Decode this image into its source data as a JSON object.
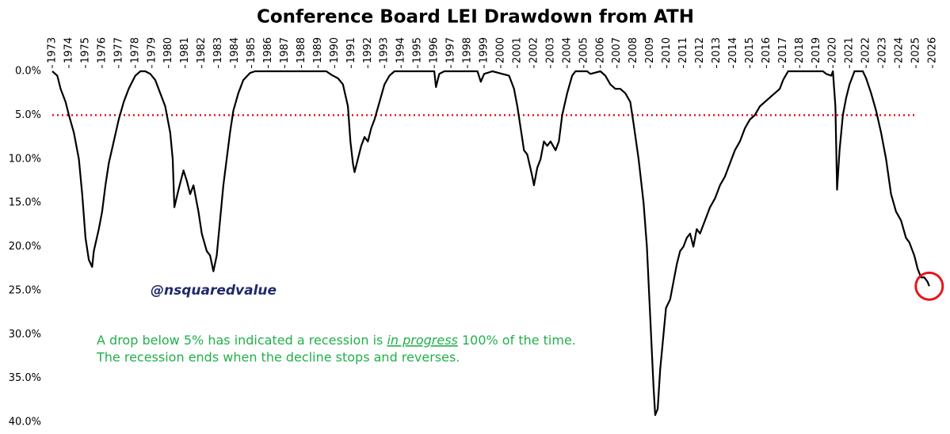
{
  "chart_data": {
    "type": "line",
    "title": "Conference Board LEI Drawdown from ATH",
    "color": "#000000",
    "x": [
      1973.0,
      1973.3,
      1973.5,
      1973.8,
      1974.0,
      1974.3,
      1974.6,
      1974.8,
      1975.0,
      1975.2,
      1975.4,
      1975.5,
      1975.8,
      1976.0,
      1976.2,
      1976.4,
      1976.7,
      1977.0,
      1977.3,
      1977.6,
      1978.0,
      1978.3,
      1978.6,
      1978.9,
      1979.2,
      1979.5,
      1979.8,
      1980.1,
      1980.25,
      1980.35,
      1980.6,
      1980.9,
      1981.1,
      1981.3,
      1981.5,
      1981.8,
      1982.0,
      1982.3,
      1982.5,
      1982.7,
      1982.9,
      1983.1,
      1983.3,
      1983.5,
      1983.7,
      1983.9,
      1984.2,
      1984.5,
      1984.9,
      1985.2,
      1989.5,
      1989.8,
      1990.2,
      1990.5,
      1990.8,
      1990.95,
      1991.1,
      1991.2,
      1991.4,
      1991.6,
      1991.8,
      1992.0,
      1992.2,
      1992.4,
      1992.7,
      1993.0,
      1993.3,
      1993.6,
      1996.0,
      1996.1,
      1996.3,
      1996.6,
      1998.6,
      1998.8,
      1999.0,
      1999.5,
      2000.5,
      2000.8,
      2001.0,
      2001.2,
      2001.4,
      2001.6,
      2001.9,
      2002.0,
      2002.2,
      2002.4,
      2002.6,
      2002.8,
      2003.0,
      2003.3,
      2003.5,
      2003.7,
      2004.0,
      2004.3,
      2004.5,
      2005.2,
      2005.4,
      2006.0,
      2006.3,
      2006.6,
      2006.9,
      2007.2,
      2007.5,
      2007.8,
      2008.0,
      2008.3,
      2008.6,
      2008.8,
      2008.95,
      2009.1,
      2009.2,
      2009.3,
      2009.45,
      2009.6,
      2009.8,
      2009.95,
      2010.2,
      2010.4,
      2010.6,
      2010.8,
      2011.0,
      2011.2,
      2011.4,
      2011.6,
      2011.8,
      2012.0,
      2012.3,
      2012.6,
      2012.9,
      2013.2,
      2013.5,
      2013.8,
      2014.1,
      2014.4,
      2014.7,
      2015.0,
      2015.3,
      2015.6,
      2015.9,
      2016.2,
      2016.5,
      2016.8,
      2017.0,
      2017.3,
      2019.4,
      2019.6,
      2019.9,
      2020.0,
      2020.15,
      2020.25,
      2020.4,
      2020.6,
      2020.8,
      2021.0,
      2021.3,
      2021.8,
      2022.0,
      2022.3,
      2022.6,
      2022.9,
      2023.2,
      2023.5,
      2023.8,
      2024.1,
      2024.4,
      2024.6,
      2024.9,
      2025.1,
      2025.3,
      2025.5,
      2025.7,
      2025.8
    ],
    "values": [
      0,
      0.5,
      2,
      3.5,
      5,
      7,
      10,
      14,
      19,
      21.5,
      22.3,
      20.5,
      18,
      16,
      13,
      10.5,
      8,
      5.5,
      3.5,
      2,
      0.5,
      0,
      0,
      0.3,
      1,
      2.5,
      4,
      7,
      10,
      15.5,
      13.5,
      11.3,
      12.5,
      14,
      13,
      16,
      18.5,
      20.5,
      21,
      22.8,
      21,
      17,
      13,
      10,
      7,
      4.5,
      2.5,
      1,
      0.2,
      0,
      0,
      0.4,
      0.8,
      1.5,
      4,
      8,
      10.5,
      11.5,
      10,
      8.5,
      7.5,
      8,
      6.5,
      5.5,
      3.5,
      1.5,
      0.5,
      0,
      0,
      1.8,
      0.3,
      0,
      0,
      1.2,
      0.3,
      0,
      0.5,
      2,
      4,
      6.5,
      9,
      9.5,
      12,
      13,
      11,
      10,
      8,
      8.5,
      8,
      9,
      8,
      5,
      2.5,
      0.5,
      0,
      0,
      0.3,
      0,
      0.5,
      1.5,
      2,
      2,
      2.5,
      3.5,
      6,
      10,
      15,
      20,
      26,
      32,
      36,
      39.2,
      38.5,
      34,
      30,
      27,
      26,
      24,
      22,
      20.5,
      20,
      19,
      18.5,
      20,
      18,
      18.5,
      17,
      15.5,
      14.5,
      13,
      12,
      10.5,
      9,
      8,
      6.5,
      5.5,
      5,
      4,
      3.5,
      3,
      2.5,
      2,
      1,
      0,
      0,
      0.3,
      0.5,
      0,
      4,
      13.5,
      9,
      5,
      3,
      1.5,
      0,
      0,
      0.8,
      2.5,
      4.5,
      7,
      10,
      14,
      16,
      17,
      19,
      19.5,
      21,
      22.5,
      23.5,
      23.5,
      24,
      24.5
    ],
    "xlim": [
      1973,
      2026
    ],
    "xticks": [
      1973,
      1974,
      1975,
      1976,
      1977,
      1978,
      1979,
      1980,
      1981,
      1982,
      1983,
      1984,
      1985,
      1986,
      1987,
      1988,
      1989,
      1990,
      1991,
      1992,
      1993,
      1994,
      1995,
      1996,
      1997,
      1998,
      1999,
      2000,
      2001,
      2002,
      2003,
      2004,
      2005,
      2006,
      2007,
      2008,
      2009,
      2010,
      2011,
      2012,
      2013,
      2014,
      2015,
      2016,
      2017,
      2018,
      2019,
      2020,
      2021,
      2022,
      2023,
      2024,
      2025,
      2026
    ],
    "ylim": [
      0,
      40
    ],
    "y_inverted": true,
    "yticks": [
      {
        "value": 0,
        "label": "0.0%"
      },
      {
        "value": 5,
        "label": "5.0%"
      },
      {
        "value": 10,
        "label": "10.0%"
      },
      {
        "value": 15,
        "label": "15.0%"
      },
      {
        "value": 20,
        "label": "20.0%"
      },
      {
        "value": 25,
        "label": "25.0%"
      },
      {
        "value": 30,
        "label": "30.0%"
      },
      {
        "value": 35,
        "label": "35.0%"
      },
      {
        "value": 40,
        "label": "40.0%"
      }
    ],
    "reference_line": {
      "value": 5,
      "color": "#e8141c"
    },
    "watermark": "@nsquaredvalue",
    "note_line1_before": "A drop below 5% has indicated a recession is ",
    "note_emphasis": "in progress",
    "note_line1_after": " 100% of the time.",
    "note_line2": "The recession ends when the decline stops and reverses.",
    "note_color": "#21b04b"
  }
}
